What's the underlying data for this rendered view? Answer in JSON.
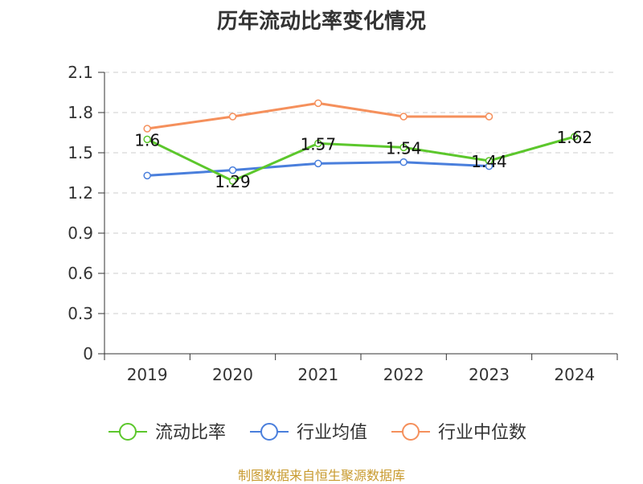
{
  "chart_data": {
    "type": "line",
    "title": "历年流动比率变化情况",
    "categories": [
      "2019",
      "2020",
      "2021",
      "2022",
      "2023",
      "2024"
    ],
    "ylim": [
      0,
      2.1
    ],
    "yticks": [
      "0",
      "0.3",
      "0.6",
      "0.9",
      "1.2",
      "1.5",
      "1.8",
      "2.1"
    ],
    "grid": true,
    "legend_position": "bottom",
    "series": [
      {
        "name": "流动比率",
        "color": "#5cc72c",
        "values": [
          1.6,
          1.29,
          1.57,
          1.54,
          1.44,
          1.62
        ],
        "labels": [
          "1.6",
          "1.29",
          "1.57",
          "1.54",
          "1.44",
          "1.62"
        ]
      },
      {
        "name": "行业均值",
        "color": "#4a7fdc",
        "values": [
          1.33,
          1.37,
          1.42,
          1.43,
          1.4,
          null
        ]
      },
      {
        "name": "行业中位数",
        "color": "#f5905c",
        "values": [
          1.68,
          1.77,
          1.87,
          1.77,
          1.77,
          null
        ]
      }
    ]
  },
  "source": "制图数据来自恒生聚源数据库"
}
